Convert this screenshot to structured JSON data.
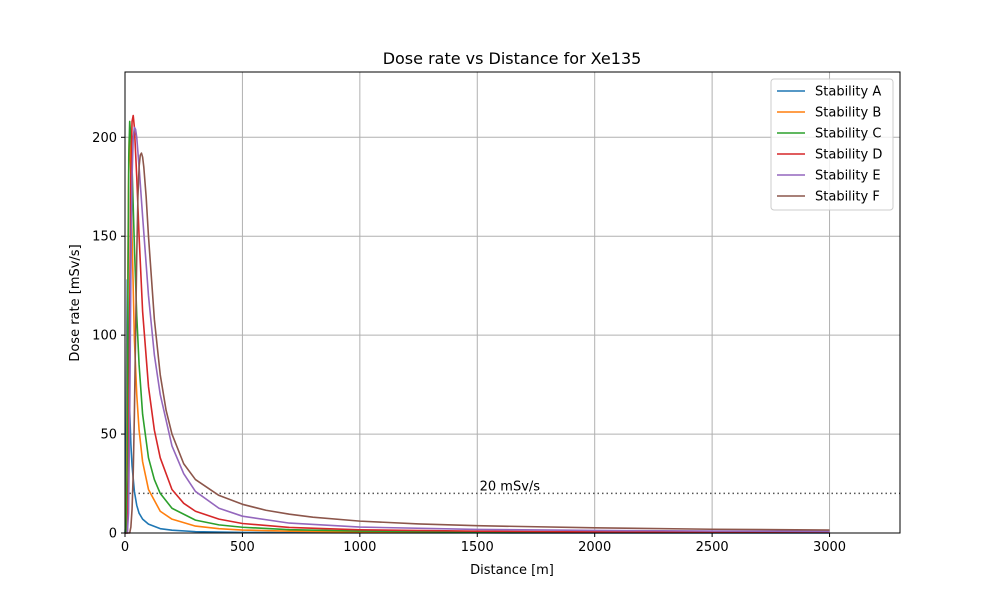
{
  "chart_data": {
    "type": "line",
    "title": "Dose rate vs Distance for Xe135",
    "xlabel": "Distance [m]",
    "ylabel": "Dose rate [mSv/s]",
    "xlim": [
      0,
      3300
    ],
    "ylim": [
      0,
      233
    ],
    "xticks": [
      0,
      500,
      1000,
      1500,
      2000,
      2500,
      3000
    ],
    "yticks": [
      0,
      50,
      100,
      150,
      200
    ],
    "grid": true,
    "legend_position": "upper right",
    "threshold": {
      "value": 20,
      "label": "20 mSv/s",
      "style": "dotted",
      "color": "#555555"
    },
    "series": [
      {
        "name": "Stability A",
        "color": "#1f77b4",
        "x": [
          0,
          3,
          6,
          8,
          10,
          12,
          15,
          20,
          25,
          30,
          40,
          50,
          60,
          75,
          100,
          150,
          200,
          300,
          400,
          500,
          700,
          1000,
          1500,
          2000,
          2500,
          3000
        ],
        "y": [
          0,
          5,
          60,
          105,
          128,
          118,
          92,
          62,
          45,
          34,
          21,
          14,
          10,
          7,
          4.5,
          2.2,
          1.4,
          0.7,
          0.45,
          0.3,
          0.18,
          0.1,
          0.06,
          0.04,
          0.03,
          0.02
        ]
      },
      {
        "name": "Stability B",
        "color": "#ff7f0e",
        "x": [
          0,
          5,
          8,
          12,
          15,
          18,
          22,
          25,
          30,
          40,
          50,
          60,
          75,
          100,
          150,
          200,
          300,
          400,
          500,
          700,
          1000,
          1500,
          2000,
          2500,
          3000
        ],
        "y": [
          0,
          2,
          40,
          130,
          175,
          200,
          196,
          180,
          150,
          98,
          70,
          52,
          36,
          22,
          11,
          7,
          3.5,
          2.2,
          1.5,
          0.9,
          0.55,
          0.3,
          0.2,
          0.15,
          0.12
        ]
      },
      {
        "name": "Stability C",
        "color": "#2ca02c",
        "x": [
          0,
          5,
          10,
          13,
          16,
          20,
          25,
          30,
          40,
          50,
          60,
          75,
          100,
          125,
          150,
          200,
          300,
          400,
          500,
          700,
          1000,
          1500,
          2000,
          2500,
          3000
        ],
        "y": [
          0,
          0,
          40,
          130,
          190,
          208,
          200,
          185,
          145,
          110,
          85,
          60,
          38,
          27,
          20,
          12.5,
          6.5,
          4.1,
          2.9,
          1.7,
          1.0,
          0.55,
          0.38,
          0.28,
          0.22
        ]
      },
      {
        "name": "Stability D",
        "color": "#d62728",
        "x": [
          0,
          10,
          15,
          20,
          25,
          30,
          35,
          40,
          50,
          60,
          75,
          100,
          125,
          150,
          200,
          250,
          300,
          400,
          500,
          700,
          1000,
          1500,
          2000,
          2500,
          3000
        ],
        "y": [
          0,
          0,
          30,
          110,
          180,
          208,
          211,
          205,
          180,
          150,
          112,
          74,
          52,
          38,
          22,
          15,
          11,
          7,
          4.8,
          2.8,
          1.6,
          0.9,
          0.6,
          0.45,
          0.36
        ]
      },
      {
        "name": "Stability E",
        "color": "#9467bd",
        "x": [
          0,
          10,
          15,
          20,
          25,
          30,
          35,
          40,
          45,
          50,
          60,
          75,
          100,
          125,
          150,
          200,
          250,
          300,
          400,
          500,
          700,
          1000,
          1500,
          2000,
          2500,
          3000
        ],
        "y": [
          0,
          0,
          10,
          60,
          130,
          180,
          200,
          205,
          204,
          200,
          185,
          160,
          120,
          90,
          70,
          44,
          30,
          21,
          12.5,
          8.5,
          5,
          3,
          1.8,
          1.3,
          1.0,
          0.8
        ]
      },
      {
        "name": "Stability F",
        "color": "#8c564b",
        "x": [
          0,
          20,
          25,
          30,
          35,
          40,
          45,
          50,
          55,
          60,
          65,
          70,
          75,
          80,
          90,
          100,
          125,
          150,
          175,
          200,
          250,
          300,
          400,
          500,
          600,
          700,
          800,
          1000,
          1250,
          1500,
          2000,
          2500,
          3000
        ],
        "y": [
          0,
          0,
          3,
          12,
          30,
          60,
          100,
          140,
          170,
          185,
          191,
          192,
          190,
          185,
          170,
          150,
          108,
          80,
          62,
          50,
          35,
          27,
          19,
          14.5,
          11.5,
          9.5,
          8,
          6,
          4.6,
          3.7,
          2.6,
          1.9,
          1.5
        ]
      }
    ]
  }
}
